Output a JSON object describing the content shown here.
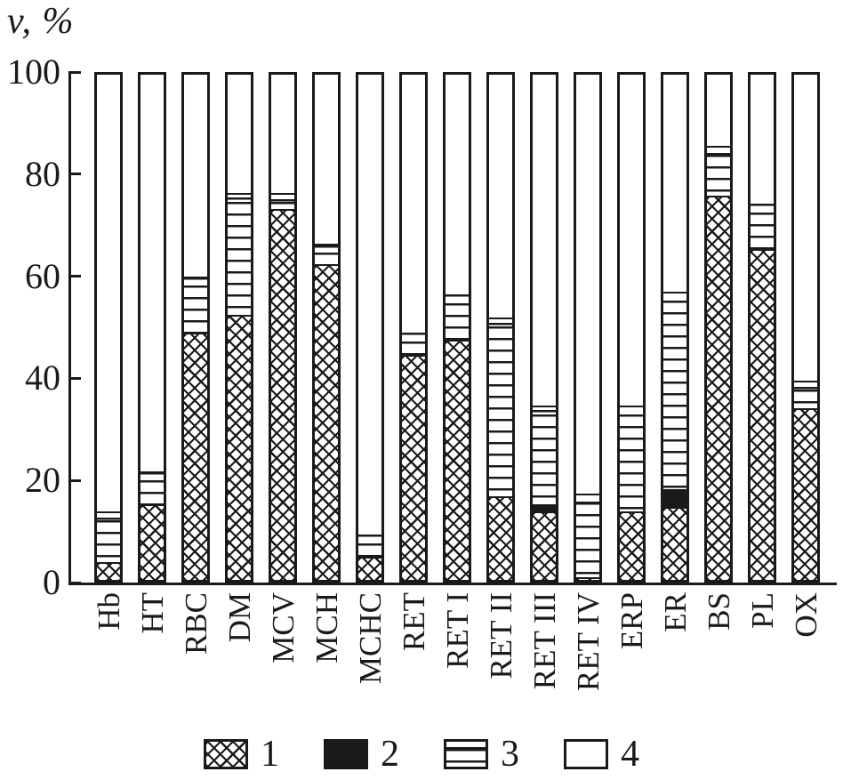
{
  "title": "v, %",
  "colors": {
    "ink": "#1a1a1a",
    "background": "#ffffff"
  },
  "chart_data": {
    "type": "bar",
    "stacked": true,
    "orientation": "vertical",
    "title": "v, %",
    "xlabel": "",
    "ylabel": "v, %",
    "ylim": [
      0,
      100
    ],
    "yticks": [
      0,
      20,
      40,
      60,
      80,
      100
    ],
    "grid": false,
    "legend_position": "bottom",
    "categories": [
      "Hb",
      "HT",
      "RBC",
      "DM",
      "MCV",
      "MCH",
      "MCHC",
      "RET",
      "RET I",
      "RET II",
      "RET III",
      "RET IV",
      "ERP",
      "ER",
      "BS",
      "PL",
      "OX"
    ],
    "series": [
      {
        "name": "1",
        "pattern": "crosshatch",
        "values": [
          3.5,
          15,
          49,
          52.5,
          73.5,
          62.5,
          4.5,
          44.5,
          47.5,
          16.5,
          13.5,
          0.5,
          13.5,
          14.5,
          76,
          65.5,
          34
        ]
      },
      {
        "name": "2",
        "pattern": "solid-black",
        "values": [
          0,
          0,
          0,
          0,
          0,
          0,
          0,
          0,
          0,
          0,
          1.5,
          0,
          0,
          3.5,
          0,
          0,
          0
        ]
      },
      {
        "name": "3",
        "pattern": "horizontal-lines",
        "values": [
          10,
          6.5,
          11,
          24,
          3,
          4,
          4.5,
          4.5,
          9,
          35.5,
          19.5,
          16.5,
          21,
          39,
          10,
          9,
          5.5
        ]
      },
      {
        "name": "4",
        "pattern": "white",
        "values": [
          86.5,
          78.5,
          40,
          23.5,
          23.5,
          33.5,
          91,
          51,
          43.5,
          48,
          65.5,
          83,
          65.5,
          43,
          14,
          25.5,
          60.5
        ]
      }
    ]
  },
  "legend": {
    "items": [
      {
        "label": "1",
        "pattern": "crosshatch"
      },
      {
        "label": "2",
        "pattern": "solid-black"
      },
      {
        "label": "3",
        "pattern": "horizontal-lines"
      },
      {
        "label": "4",
        "pattern": "white"
      }
    ]
  }
}
